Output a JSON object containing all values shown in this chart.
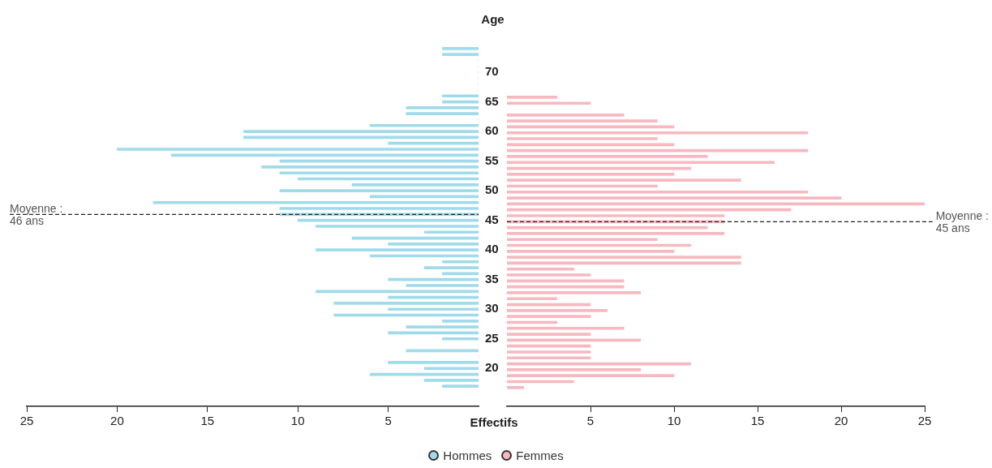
{
  "chart_data": [
    {
      "type": "bar",
      "orientation": "horizontal",
      "ylabel": "Age",
      "legend": "bottom",
      "grid": false,
      "xlim": [
        25,
        0
      ],
      "xticks": [
        25,
        20,
        15,
        10,
        5
      ],
      "ylim": [
        16.5,
        74.5
      ],
      "yticks": [
        20,
        25,
        30,
        35,
        40,
        45,
        50,
        55,
        60,
        65,
        70
      ],
      "series": [
        {
          "name": "Hommes",
          "color": "#9fdbea",
          "x": [
            74,
            73,
            72,
            71,
            70,
            69,
            68,
            67,
            66,
            65,
            64,
            63,
            62,
            61,
            60,
            59,
            58,
            57,
            56,
            55,
            54,
            53,
            52,
            51,
            50,
            49,
            48,
            47,
            46,
            45,
            44,
            43,
            42,
            41,
            40,
            39,
            38,
            37,
            36,
            35,
            34,
            33,
            32,
            31,
            30,
            29,
            28,
            27,
            26,
            25,
            24,
            23,
            22,
            21,
            20,
            19,
            18,
            17
          ],
          "values": [
            2,
            2,
            0,
            0,
            0,
            0,
            0,
            0,
            2,
            2,
            4,
            4,
            0,
            6,
            13,
            13,
            5,
            20,
            17,
            11,
            12,
            11,
            10,
            7,
            11,
            6,
            18,
            11,
            11,
            10,
            9,
            3,
            7,
            5,
            9,
            6,
            2,
            3,
            2,
            5,
            4,
            9,
            5,
            8,
            5,
            8,
            2,
            4,
            5,
            2,
            0,
            4,
            0,
            5,
            3,
            6,
            3,
            2
          ]
        }
      ],
      "ref_lines": [
        {
          "axis": "y",
          "value": 46,
          "label": "Moyenne :\n46 ans",
          "line_style": "dashed",
          "color": "#222222"
        }
      ]
    },
    {
      "type": "bar",
      "orientation": "horizontal",
      "xlabel": "Effectifs",
      "legend": "bottom",
      "grid": false,
      "tick_labels": "x",
      "xlim": [
        0,
        25
      ],
      "xticks": [
        5,
        10,
        15,
        20,
        25
      ],
      "ylim": [
        16.5,
        70
      ],
      "yticks": [
        20,
        25,
        30,
        35,
        40,
        45,
        50,
        55,
        60,
        65,
        70
      ],
      "series": [
        {
          "name": "Femmes",
          "color": "#f7b8c0",
          "x": [
            66,
            65,
            64,
            63,
            62,
            61,
            60,
            59,
            58,
            57,
            56,
            55,
            54,
            53,
            52,
            51,
            50,
            49,
            48,
            47,
            46,
            45,
            44,
            43,
            42,
            41,
            40,
            39,
            38,
            37,
            36,
            35,
            34,
            33,
            32,
            31,
            30,
            29,
            28,
            27,
            26,
            25,
            24,
            23,
            22,
            21,
            20,
            19,
            18,
            17
          ],
          "values": [
            3,
            5,
            0,
            7,
            9,
            10,
            18,
            9,
            10,
            18,
            12,
            16,
            11,
            10,
            14,
            9,
            18,
            20,
            25,
            17,
            13,
            13,
            12,
            13,
            9,
            11,
            10,
            14,
            14,
            4,
            5,
            7,
            7,
            8,
            3,
            5,
            6,
            5,
            3,
            7,
            5,
            8,
            5,
            5,
            5,
            11,
            8,
            10,
            4,
            1
          ]
        }
      ],
      "ref_lines": [
        {
          "axis": "y",
          "value": 45,
          "label": "Moyenne :\n45 ans",
          "line_style": "dashed",
          "color": "#222222"
        }
      ]
    }
  ]
}
